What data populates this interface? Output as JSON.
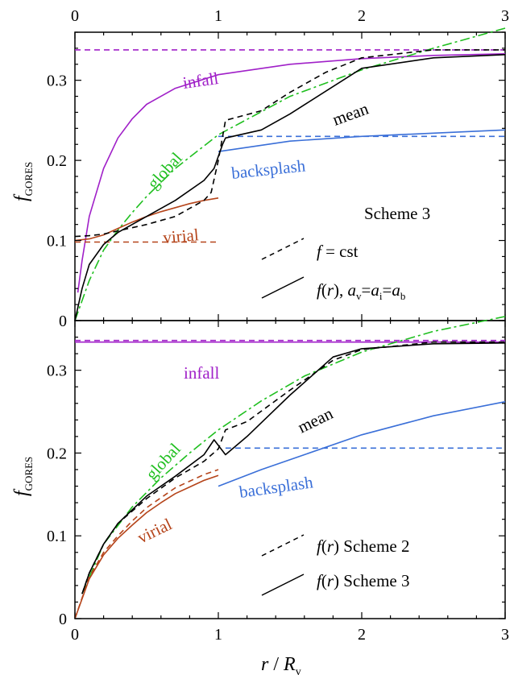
{
  "x_ticks": [
    "0",
    "1",
    "2",
    "3"
  ],
  "y_ticks": [
    "0",
    "0.1",
    "0.2",
    "0.3"
  ],
  "ylabel": {
    "main": "f",
    "sub": "GORES"
  },
  "xlabel": {
    "main": "r / R",
    "sub": "v"
  },
  "colors": {
    "infall": "#a020c8",
    "global": "#1fbf1f",
    "backsplash": "#3a6fd8",
    "virial": "#b5441a",
    "mean": "#000000"
  },
  "chart_data": [
    {
      "type": "line",
      "panel": "top",
      "xlim": [
        0,
        3
      ],
      "ylim": [
        0,
        0.36
      ],
      "scheme_label": "Scheme 3",
      "labels": {
        "infall": "infall",
        "global": "global",
        "mean": "mean",
        "backsplash": "backsplash",
        "virial": "virial"
      },
      "legend": [
        {
          "style": "dashed",
          "label": "f = cst"
        },
        {
          "style": "solid",
          "label": "f(r), a_v = a_i = a_b"
        }
      ],
      "series": [
        {
          "name": "infall",
          "style": "dashed",
          "x": [
            0,
            3
          ],
          "y": [
            0.338,
            0.338
          ]
        },
        {
          "name": "infall",
          "style": "solid",
          "x": [
            0.02,
            0.05,
            0.1,
            0.2,
            0.3,
            0.4,
            0.5,
            0.7,
            1.0,
            1.5,
            2.0,
            2.5,
            3.0
          ],
          "y": [
            0.035,
            0.075,
            0.13,
            0.19,
            0.228,
            0.252,
            0.27,
            0.29,
            0.307,
            0.32,
            0.327,
            0.331,
            0.333
          ]
        },
        {
          "name": "global",
          "style": "dashdot",
          "x": [
            0,
            0.1,
            0.2,
            0.3,
            0.4,
            0.5,
            0.7,
            1.0,
            1.5,
            2.0,
            2.5,
            3.0
          ],
          "y": [
            0,
            0.05,
            0.088,
            0.113,
            0.135,
            0.155,
            0.19,
            0.232,
            0.28,
            0.313,
            0.34,
            0.365
          ]
        },
        {
          "name": "backsplash",
          "style": "dashed",
          "x": [
            1.0,
            3.0
          ],
          "y": [
            0.23,
            0.23
          ]
        },
        {
          "name": "backsplash",
          "style": "solid",
          "x": [
            1.0,
            1.5,
            2.0,
            2.5,
            3.0
          ],
          "y": [
            0.211,
            0.224,
            0.23,
            0.234,
            0.238
          ]
        },
        {
          "name": "virial",
          "style": "dashed",
          "x": [
            0,
            1.0
          ],
          "y": [
            0.098,
            0.098
          ]
        },
        {
          "name": "virial",
          "style": "solid",
          "x": [
            0,
            0.1,
            0.2,
            0.3,
            0.4,
            0.5,
            0.6,
            0.7,
            0.8,
            0.9,
            1.0
          ],
          "y": [
            0.1,
            0.102,
            0.107,
            0.115,
            0.123,
            0.13,
            0.136,
            0.141,
            0.146,
            0.15,
            0.153
          ]
        },
        {
          "name": "mean",
          "style": "dashed",
          "x": [
            0,
            0.1,
            0.2,
            0.3,
            0.5,
            0.7,
            0.9,
            0.95,
            1.0,
            1.05,
            1.3,
            1.5,
            1.75,
            2.0,
            2.5,
            3.0
          ],
          "y": [
            0.105,
            0.106,
            0.108,
            0.112,
            0.12,
            0.13,
            0.15,
            0.16,
            0.2,
            0.25,
            0.262,
            0.285,
            0.31,
            0.328,
            0.338,
            0.338
          ]
        },
        {
          "name": "mean",
          "style": "solid",
          "x": [
            0,
            0.05,
            0.1,
            0.2,
            0.3,
            0.5,
            0.7,
            0.9,
            0.97,
            1.03,
            1.05,
            1.3,
            1.5,
            2.0,
            2.5,
            3.0
          ],
          "y": [
            0,
            0.04,
            0.07,
            0.095,
            0.11,
            0.13,
            0.15,
            0.175,
            0.19,
            0.22,
            0.228,
            0.238,
            0.258,
            0.315,
            0.328,
            0.332
          ]
        }
      ]
    },
    {
      "type": "line",
      "panel": "bottom",
      "xlim": [
        0,
        3
      ],
      "ylim": [
        0,
        0.36
      ],
      "labels": {
        "infall": "infall",
        "global": "global",
        "mean": "mean",
        "backsplash": "backsplash",
        "virial": "virial"
      },
      "legend": [
        {
          "style": "dashed",
          "label": "f(r) Scheme 2"
        },
        {
          "style": "solid",
          "label": "f(r) Scheme 3"
        }
      ],
      "series": [
        {
          "name": "infall",
          "style": "solid",
          "x": [
            0,
            3
          ],
          "y": [
            0.334,
            0.334
          ]
        },
        {
          "name": "infall",
          "style": "dashed",
          "x": [
            0,
            3
          ],
          "y": [
            0.336,
            0.336
          ]
        },
        {
          "name": "global",
          "style": "dashdot",
          "x": [
            0.05,
            0.2,
            0.4,
            0.6,
            0.8,
            1.0,
            1.3,
            1.6,
            2.0,
            2.5,
            3.0
          ],
          "y": [
            0.03,
            0.09,
            0.135,
            0.17,
            0.2,
            0.228,
            0.263,
            0.293,
            0.322,
            0.347,
            0.365
          ]
        },
        {
          "name": "backsplash",
          "style": "dashed",
          "x": [
            1.05,
            3.0
          ],
          "y": [
            0.206,
            0.206
          ]
        },
        {
          "name": "backsplash",
          "style": "solid",
          "x": [
            1.0,
            1.3,
            1.6,
            2.0,
            2.5,
            3.0
          ],
          "y": [
            0.16,
            0.18,
            0.198,
            0.222,
            0.245,
            0.262
          ]
        },
        {
          "name": "virial",
          "style": "dashed",
          "x": [
            0,
            0.1,
            0.2,
            0.3,
            0.4,
            0.5,
            0.6,
            0.7,
            0.8,
            0.9,
            1.0
          ],
          "y": [
            0,
            0.05,
            0.08,
            0.1,
            0.118,
            0.134,
            0.146,
            0.158,
            0.166,
            0.174,
            0.18
          ]
        },
        {
          "name": "virial",
          "style": "solid",
          "x": [
            0,
            0.1,
            0.2,
            0.3,
            0.4,
            0.5,
            0.6,
            0.7,
            0.8,
            0.9,
            1.0
          ],
          "y": [
            0,
            0.048,
            0.077,
            0.097,
            0.113,
            0.128,
            0.14,
            0.151,
            0.159,
            0.167,
            0.173
          ]
        },
        {
          "name": "mean",
          "style": "dashed",
          "x": [
            0.05,
            0.1,
            0.2,
            0.3,
            0.5,
            0.7,
            0.9,
            1.0,
            1.05,
            1.2,
            1.5,
            1.8,
            2.0,
            2.5,
            3.0
          ],
          "y": [
            0.03,
            0.055,
            0.09,
            0.115,
            0.145,
            0.17,
            0.19,
            0.205,
            0.228,
            0.238,
            0.276,
            0.312,
            0.325,
            0.334,
            0.334
          ]
        },
        {
          "name": "mean",
          "style": "solid",
          "x": [
            0.05,
            0.1,
            0.2,
            0.3,
            0.5,
            0.7,
            0.9,
            0.97,
            1.05,
            1.2,
            1.5,
            1.8,
            2.0,
            2.5,
            3.0
          ],
          "y": [
            0.03,
            0.055,
            0.09,
            0.115,
            0.148,
            0.172,
            0.198,
            0.216,
            0.198,
            0.22,
            0.27,
            0.316,
            0.326,
            0.332,
            0.333
          ]
        }
      ]
    }
  ]
}
